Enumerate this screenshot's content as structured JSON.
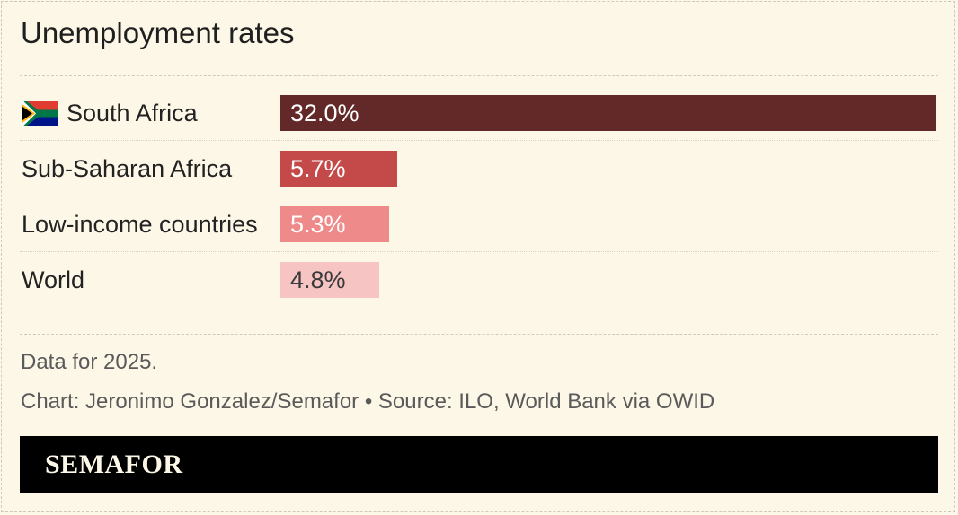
{
  "title": "Unemployment rates",
  "chart_data": {
    "type": "bar",
    "orientation": "horizontal",
    "title": "Unemployment rates",
    "unit": "%",
    "categories": [
      "South Africa",
      "Sub-Saharan Africa",
      "Low-income countries",
      "World"
    ],
    "values": [
      32.0,
      5.7,
      5.3,
      4.8
    ],
    "value_labels": [
      "32.0%",
      "5.7%",
      "5.3%",
      "4.8%"
    ],
    "xlim": [
      0,
      32.0
    ],
    "colors": [
      "#632828",
      "#c44a4a",
      "#ef8a8a",
      "#f7c4c4"
    ],
    "label_colors": [
      "#ffffff",
      "#ffffff",
      "#ffffff",
      "#3a3a3a"
    ],
    "grid": false,
    "legend": "none"
  },
  "notes": {
    "data_year": "Data for 2025.",
    "credit": "Chart: Jeronimo Gonzalez/Semafor • Source: ILO, World Bank via OWID"
  },
  "footer": {
    "logo": "SEMAFOR",
    "background": "#000000"
  },
  "icons": {
    "south_africa": "south-africa-flag-icon"
  }
}
